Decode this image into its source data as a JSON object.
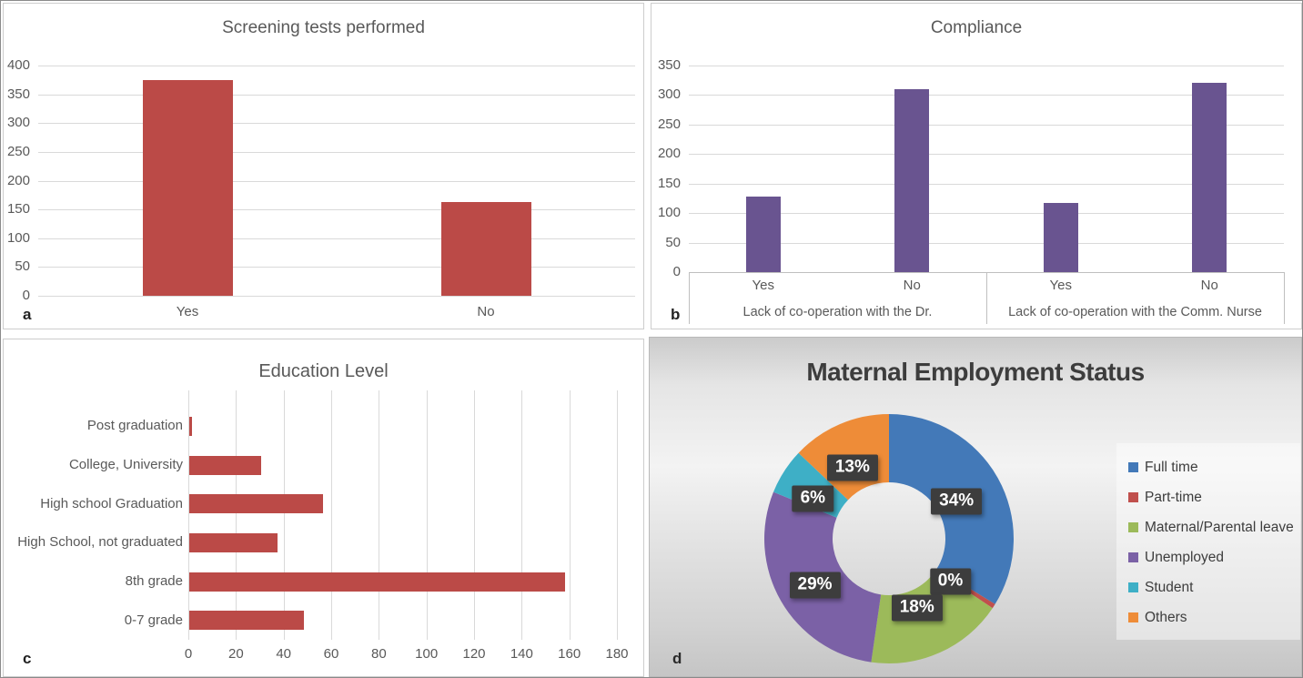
{
  "figure": {
    "panel_letters": [
      "a",
      "b",
      "c",
      "d"
    ]
  },
  "chart_data": [
    {
      "type": "bar",
      "panel": "a",
      "title": "Screening tests performed",
      "categories": [
        "Yes",
        "No"
      ],
      "values": [
        375,
        163
      ],
      "ylim": [
        0,
        400
      ],
      "yticks": [
        0,
        50,
        100,
        150,
        200,
        250,
        300,
        350,
        400
      ],
      "bar_color": "#bb4a47",
      "grid": true,
      "legend": false
    },
    {
      "type": "bar",
      "panel": "b",
      "title": "Compliance",
      "groups": [
        {
          "label": "Lack of co-operation with the Dr.",
          "categories": [
            "Yes",
            "No"
          ],
          "values": [
            128,
            310
          ]
        },
        {
          "label": "Lack of co-operation with the Comm. Nurse",
          "categories": [
            "Yes",
            "No"
          ],
          "values": [
            117,
            321
          ]
        }
      ],
      "ylim": [
        0,
        350
      ],
      "yticks": [
        0,
        50,
        100,
        150,
        200,
        250,
        300,
        350
      ],
      "bar_color": "#695490",
      "grid": true,
      "legend": false
    },
    {
      "type": "bar",
      "orientation": "horizontal",
      "panel": "c",
      "title": "Education Level",
      "categories": [
        "Post graduation",
        "College, University",
        "High school Graduation",
        "High School, not graduated",
        "8th grade",
        "0-7 grade"
      ],
      "values": [
        1,
        30,
        56,
        37,
        158,
        48
      ],
      "xlim": [
        0,
        180
      ],
      "xticks": [
        0,
        20,
        40,
        60,
        80,
        100,
        120,
        140,
        160,
        180
      ],
      "bar_color": "#bb4a47",
      "grid": true,
      "legend": false
    },
    {
      "type": "pie",
      "donut": true,
      "panel": "d",
      "title": "Maternal Employment Status",
      "slices": [
        {
          "label": "Full time",
          "value": 34,
          "display": "34%",
          "color": "#4379b8"
        },
        {
          "label": "Part-time",
          "value": 0,
          "display": "0%",
          "color": "#c0504d"
        },
        {
          "label": "Maternal/Parental leave",
          "value": 18,
          "display": "18%",
          "color": "#9cba5a"
        },
        {
          "label": "Unemployed",
          "value": 29,
          "display": "29%",
          "color": "#7b61a6"
        },
        {
          "label": "Student",
          "value": 6,
          "display": "6%",
          "color": "#3eafc6"
        },
        {
          "label": "Others",
          "value": 13,
          "display": "13%",
          "color": "#ee8c38"
        }
      ],
      "legend_position": "right",
      "data_label_style": {
        "background": "#3d3d3d",
        "text": "#ffffff"
      }
    }
  ]
}
